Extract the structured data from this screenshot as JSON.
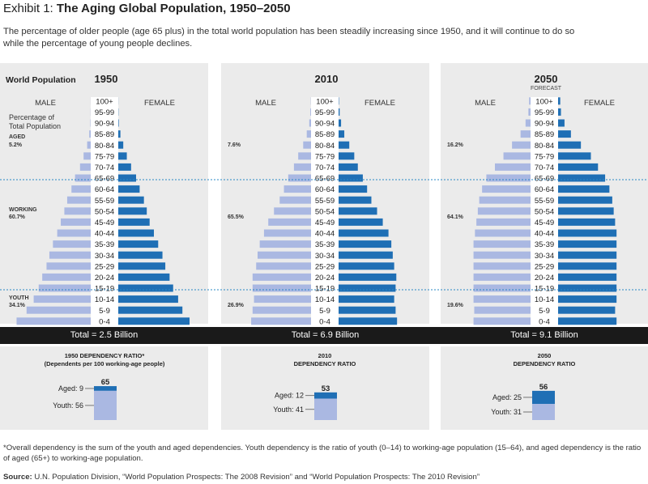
{
  "header": {
    "exhibit_label": "Exhibit 1:",
    "title": "The Aging Global Population, 1950–2050",
    "subtitle": "The percentage of older people (age 65 plus) in the total world population has been steadily increasing since 1950, and it will continue to do so while the percentage of young people declines."
  },
  "chart_data": {
    "type": "bar",
    "age_groups": [
      "100+",
      "95-99",
      "90-94",
      "85-89",
      "80-84",
      "75-79",
      "70-74",
      "65-69",
      "60-64",
      "55-59",
      "50-54",
      "45-49",
      "40-44",
      "35-39",
      "30-34",
      "25-29",
      "20-24",
      "15-19",
      "10-14",
      "5-9",
      "0-4"
    ],
    "labels": {
      "world_population": "World Population",
      "male": "MALE",
      "female": "FEMALE",
      "percentage_note": [
        "Percentage of",
        "Total Population"
      ],
      "aged": "AGED",
      "working": "WORKING",
      "youth": "YOUTH",
      "forecast": "FORECAST"
    },
    "panels": [
      {
        "year": "1950",
        "total": "Total = 2.5 Billion",
        "aged_pct": "5.2%",
        "working_pct": "60.7%",
        "youth_pct": "34.1%",
        "male": [
          0.1,
          0.2,
          0.5,
          2,
          5,
          10,
          15,
          22,
          27,
          33,
          37,
          42,
          47,
          53,
          58,
          62,
          68,
          73,
          80,
          90,
          104
        ],
        "female": [
          0.1,
          0.3,
          0.7,
          3,
          7,
          12,
          18,
          25,
          30,
          36,
          40,
          44,
          50,
          56,
          62,
          66,
          72,
          77,
          84,
          90,
          100
        ]
      },
      {
        "year": "2010",
        "total": "Total = 6.9 Billion",
        "aged_pct": "7.6%",
        "working_pct": "65.5%",
        "youth_pct": "26.9%",
        "male": [
          0.3,
          1,
          2.5,
          6,
          11,
          18,
          24,
          32,
          38,
          44,
          52,
          60,
          66,
          72,
          75,
          77,
          82,
          82,
          80,
          82,
          84
        ],
        "female": [
          0.5,
          1.5,
          3.5,
          8,
          15,
          22,
          27,
          34,
          40,
          46,
          54,
          62,
          70,
          74,
          76,
          78,
          81,
          80,
          78,
          80,
          82
        ]
      },
      {
        "year": "2050",
        "total": "Total = 9.1 Billion",
        "aged_pct": "16.2%",
        "working_pct": "64.1%",
        "youth_pct": "19.6%",
        "male": [
          2,
          3,
          7,
          14,
          26,
          38,
          50,
          62,
          68,
          72,
          74,
          76,
          78,
          80,
          80,
          80,
          80,
          80,
          80,
          79,
          80
        ],
        "female": [
          3,
          4,
          9,
          18,
          32,
          46,
          56,
          66,
          72,
          76,
          78,
          80,
          82,
          82,
          82,
          82,
          82,
          82,
          82,
          80,
          82
        ]
      }
    ]
  },
  "dependency": [
    {
      "title_lines": [
        "1950 DEPENDENCY RATIO*",
        "(Dependents per 100 working-age people)"
      ],
      "total": "65",
      "aged_label": "Aged: 9",
      "youth_label": "Youth: 56",
      "aged": 9,
      "youth": 56
    },
    {
      "title_lines": [
        "2010",
        "DEPENDENCY RATIO"
      ],
      "total": "53",
      "aged_label": "Aged: 12",
      "youth_label": "Youth: 41",
      "aged": 12,
      "youth": 41
    },
    {
      "title_lines": [
        "2050",
        "DEPENDENCY RATIO"
      ],
      "total": "56",
      "aged_label": "Aged:  25",
      "youth_label": "Youth:  31",
      "aged": 25,
      "youth": 31
    }
  ],
  "colors": {
    "female": "#1f6fb5",
    "male": "#aab8e2",
    "panel_bg": "#ebebeb",
    "divider": "#2a88c6",
    "bar_bg": "#1a1a1a"
  },
  "footnote": "*Overall dependency is the sum of the youth and aged dependencies. Youth dependency is the ratio of youth (0–14) to working-age population (15–64), and aged dependency is the ratio of aged (65+) to working-age population.",
  "source": {
    "label": "Source:",
    "text": "U.N. Population Division, “World Population Prospects: The 2008 Revision” and “World Population Prospects: The 2010 Revision”"
  }
}
